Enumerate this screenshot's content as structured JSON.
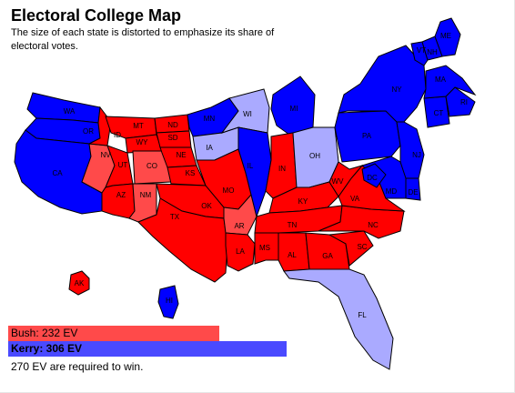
{
  "title": "Electoral College Map",
  "subtitle": "The size of each state is distorted to emphasize its share of electoral votes.",
  "colors": {
    "bush_strong": "#ff0000",
    "bush_lean": "#ff4a4a",
    "kerry_strong": "#0000ff",
    "kerry_lean": "#aaaaff",
    "bush_bar": "#ff4a4a",
    "kerry_bar": "#4a4aff"
  },
  "legend": {
    "bush": {
      "label": "Bush: 232 EV",
      "ev": 232
    },
    "kerry": {
      "label": "Kerry: 306 EV",
      "ev": 306
    },
    "required": "270 EV are required to win."
  },
  "states": {
    "WA": {
      "label": "WA",
      "winner": "kerry_strong"
    },
    "OR": {
      "label": "OR",
      "winner": "kerry_strong"
    },
    "CA": {
      "label": "CA",
      "winner": "kerry_strong"
    },
    "NV": {
      "label": "NV",
      "winner": "bush_lean"
    },
    "ID": {
      "label": "ID",
      "winner": "bush_strong"
    },
    "MT": {
      "label": "MT",
      "winner": "bush_strong"
    },
    "WY": {
      "label": "WY",
      "winner": "bush_strong"
    },
    "UT": {
      "label": "UT",
      "winner": "bush_strong"
    },
    "CO": {
      "label": "CO",
      "winner": "bush_lean"
    },
    "AZ": {
      "label": "AZ",
      "winner": "bush_strong"
    },
    "NM": {
      "label": "NM",
      "winner": "bush_lean"
    },
    "ND": {
      "label": "ND",
      "winner": "bush_strong"
    },
    "SD": {
      "label": "SD",
      "winner": "bush_strong"
    },
    "NE": {
      "label": "NE",
      "winner": "bush_strong"
    },
    "KS": {
      "label": "KS",
      "winner": "bush_strong"
    },
    "OK": {
      "label": "OK",
      "winner": "bush_strong"
    },
    "TX": {
      "label": "TX",
      "winner": "bush_strong"
    },
    "MN": {
      "label": "MN",
      "winner": "kerry_strong"
    },
    "IA": {
      "label": "IA",
      "winner": "kerry_lean"
    },
    "MO": {
      "label": "MO",
      "winner": "bush_strong"
    },
    "AR": {
      "label": "AR",
      "winner": "bush_lean"
    },
    "LA": {
      "label": "LA",
      "winner": "bush_strong"
    },
    "WI": {
      "label": "WI",
      "winner": "kerry_lean"
    },
    "IL": {
      "label": "IL",
      "winner": "kerry_strong"
    },
    "MI": {
      "label": "MI",
      "winner": "kerry_strong"
    },
    "IN": {
      "label": "IN",
      "winner": "bush_strong"
    },
    "OH": {
      "label": "OH",
      "winner": "kerry_lean"
    },
    "KY": {
      "label": "KY",
      "winner": "bush_strong"
    },
    "TN": {
      "label": "TN",
      "winner": "bush_strong"
    },
    "MS": {
      "label": "MS",
      "winner": "bush_strong"
    },
    "AL": {
      "label": "AL",
      "winner": "bush_strong"
    },
    "GA": {
      "label": "GA",
      "winner": "bush_strong"
    },
    "FL": {
      "label": "FL",
      "winner": "kerry_lean"
    },
    "SC": {
      "label": "SC",
      "winner": "bush_strong"
    },
    "NC": {
      "label": "NC",
      "winner": "bush_strong"
    },
    "VA": {
      "label": "VA",
      "winner": "bush_strong"
    },
    "WV": {
      "label": "WV",
      "winner": "bush_strong"
    },
    "PA": {
      "label": "PA",
      "winner": "kerry_strong"
    },
    "NY": {
      "label": "NY",
      "winner": "kerry_strong"
    },
    "NJ": {
      "label": "NJ",
      "winner": "kerry_strong"
    },
    "DE": {
      "label": "DE",
      "winner": "kerry_strong"
    },
    "MD": {
      "label": "MD",
      "winner": "kerry_strong"
    },
    "DC": {
      "label": "DC",
      "winner": "kerry_strong"
    },
    "CT": {
      "label": "CT",
      "winner": "kerry_strong"
    },
    "RI": {
      "label": "RI",
      "winner": "kerry_strong"
    },
    "MA": {
      "label": "MA",
      "winner": "kerry_strong"
    },
    "VT": {
      "label": "VT",
      "winner": "kerry_strong"
    },
    "NH": {
      "label": "NH",
      "winner": "kerry_strong"
    },
    "ME": {
      "label": "ME",
      "winner": "kerry_strong"
    },
    "AK": {
      "label": "AK",
      "winner": "bush_strong"
    },
    "HI": {
      "label": "HI",
      "winner": "kerry_strong"
    }
  }
}
